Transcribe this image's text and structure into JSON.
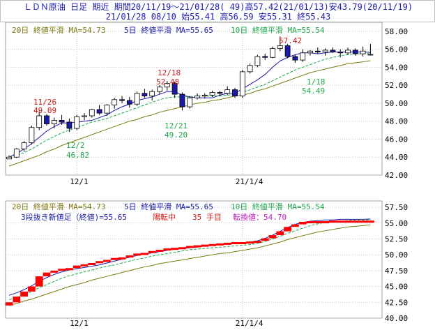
{
  "header": {
    "line1": "ＬＤＮ原油 日足 期近 期間20/11/19～21/01/28( 49)高57.42(21/01/13)安43.79(20/11/19)",
    "line2": "21/01/28 08/10 始55.41 高56.59 安55.31 終55.43"
  },
  "colors": {
    "up": "#ffffff",
    "down": "#1a1aa8",
    "ma5": "#1a1aa8",
    "ma10": "#1fa84b",
    "ma20": "#7d7a10",
    "label_red": "#d01818",
    "label_green": "#1fa84b",
    "kagi": "#ff0000",
    "grid": "#c0c0c0"
  },
  "top_chart": {
    "legend": {
      "ma20": "20日 終値平滑 MA=54.73",
      "ma5": "5日 終値平滑 MA=55.65",
      "ma10": "10日 終値平滑 MA=55.54"
    },
    "y_ticks": [
      "58.00",
      "56.00",
      "54.00",
      "52.00",
      "50.00",
      "48.00",
      "46.00",
      "44.00",
      "42.00"
    ],
    "x_ticks": [
      "12/1",
      "21/1/4"
    ],
    "annotations": [
      {
        "date": "11/26",
        "value": "49.09",
        "color": "red"
      },
      {
        "date": "12/2",
        "value": "46.82",
        "color": "green"
      },
      {
        "date": "12/18",
        "value": "52.48",
        "color": "red"
      },
      {
        "date": "12/21",
        "value": "49.20",
        "color": "green"
      },
      {
        "date": "",
        "value": "57.42",
        "color": "red"
      },
      {
        "date": "1/18",
        "value": "54.49",
        "color": "green"
      }
    ]
  },
  "bottom_chart": {
    "legend": {
      "ma20": "20日 終値平滑 MA=54.73",
      "ma5": "5日 終値平滑 MA=55.65",
      "ma10": "10日 終値平滑 MA=55.54"
    },
    "info": {
      "kagi": "3段抜き新値足（終値)=55.65",
      "trend": "陽転中",
      "count": "35 手目",
      "reversal": "転換値：54.70"
    },
    "y_ticks": [
      "57.50",
      "55.00",
      "52.50",
      "50.00",
      "47.50",
      "45.00",
      "42.50",
      "40.00"
    ],
    "x_ticks": [
      "12/1",
      "21/1/4"
    ]
  },
  "chart_data": [
    {
      "type": "candlestick",
      "title": "ＬＤＮ原油 日足 期近",
      "ylim": [
        42,
        59
      ],
      "x_labels": {
        "12/1": 9,
        "21/1/4": 31
      },
      "series": [
        {
          "name": "OHLC",
          "values": [
            [
              43.8,
              44.2,
              43.79,
              44.0
            ],
            [
              44.0,
              45.0,
              43.9,
              44.9
            ],
            [
              44.9,
              45.8,
              44.6,
              45.6
            ],
            [
              45.6,
              47.5,
              45.4,
              47.3
            ],
            [
              47.3,
              49.09,
              47.0,
              48.6
            ],
            [
              48.6,
              48.8,
              47.5,
              47.7
            ],
            [
              47.7,
              48.4,
              47.2,
              48.1
            ],
            [
              48.1,
              48.7,
              47.6,
              47.9
            ],
            [
              47.9,
              48.3,
              46.82,
              47.2
            ],
            [
              47.2,
              48.7,
              47.0,
              48.5
            ],
            [
              48.5,
              48.9,
              48.1,
              48.6
            ],
            [
              48.6,
              49.4,
              48.4,
              49.3
            ],
            [
              49.3,
              49.8,
              48.7,
              48.9
            ],
            [
              48.9,
              49.9,
              48.6,
              49.8
            ],
            [
              49.8,
              50.6,
              49.4,
              50.4
            ],
            [
              50.4,
              50.8,
              50.0,
              50.3
            ],
            [
              50.3,
              50.7,
              49.5,
              49.9
            ],
            [
              49.9,
              51.3,
              49.7,
              51.1
            ],
            [
              51.1,
              51.6,
              50.6,
              50.8
            ],
            [
              50.8,
              51.5,
              50.3,
              51.3
            ],
            [
              51.3,
              52.0,
              51.0,
              51.8
            ],
            [
              51.8,
              52.48,
              51.4,
              52.2
            ],
            [
              52.2,
              52.4,
              50.6,
              51.0
            ],
            [
              51.0,
              51.2,
              49.2,
              49.6
            ],
            [
              49.6,
              50.8,
              49.4,
              50.6
            ],
            [
              50.6,
              51.1,
              50.4,
              50.8
            ],
            [
              50.8,
              51.1,
              50.5,
              50.9
            ],
            [
              50.9,
              51.4,
              50.7,
              51.2
            ],
            [
              51.2,
              51.4,
              50.8,
              51.1
            ],
            [
              51.1,
              51.9,
              50.9,
              51.5
            ],
            [
              51.5,
              51.7,
              50.6,
              50.8
            ],
            [
              50.8,
              53.7,
              50.6,
              53.5
            ],
            [
              53.5,
              54.4,
              53.3,
              54.2
            ],
            [
              54.2,
              55.4,
              54.0,
              55.2
            ],
            [
              55.2,
              55.5,
              54.8,
              55.1
            ],
            [
              55.1,
              56.3,
              55.0,
              56.1
            ],
            [
              56.1,
              57.42,
              55.8,
              56.4
            ],
            [
              56.4,
              56.6,
              55.0,
              55.2
            ],
            [
              55.2,
              55.4,
              54.49,
              54.8
            ],
            [
              54.8,
              56.0,
              54.6,
              55.6
            ],
            [
              55.6,
              55.9,
              55.3,
              55.8
            ],
            [
              55.8,
              56.2,
              55.5,
              55.7
            ],
            [
              55.7,
              56.1,
              55.3,
              55.9
            ],
            [
              55.9,
              56.2,
              55.6,
              55.7
            ],
            [
              55.7,
              56.0,
              55.1,
              55.6
            ],
            [
              55.6,
              56.2,
              55.4,
              55.9
            ],
            [
              55.9,
              56.1,
              55.3,
              55.5
            ],
            [
              55.5,
              56.3,
              55.2,
              55.8
            ],
            [
              55.41,
              56.59,
              55.31,
              55.43
            ]
          ]
        },
        {
          "name": "MA5",
          "values": [
            44.0,
            44.4,
            44.9,
            45.5,
            46.2,
            46.9,
            47.4,
            47.8,
            47.8,
            47.9,
            48.0,
            48.1,
            48.4,
            48.7,
            49.2,
            49.6,
            49.9,
            50.3,
            50.5,
            50.7,
            51.0,
            51.3,
            51.3,
            50.9,
            50.7,
            50.6,
            50.6,
            50.6,
            50.9,
            51.1,
            51.1,
            51.6,
            52.1,
            52.6,
            53.2,
            54.0,
            54.7,
            55.1,
            55.4,
            55.6,
            55.6,
            55.5,
            55.6,
            55.7,
            55.7,
            55.7,
            55.7,
            55.7,
            55.65
          ]
        },
        {
          "name": "MA10",
          "values": [
            44.0,
            44.2,
            44.5,
            44.9,
            45.4,
            45.9,
            46.3,
            46.7,
            47.0,
            47.3,
            47.6,
            47.9,
            48.1,
            48.3,
            48.6,
            48.9,
            49.2,
            49.5,
            49.8,
            50.1,
            50.4,
            50.6,
            50.7,
            50.7,
            50.7,
            50.8,
            50.8,
            50.8,
            50.8,
            50.9,
            51.0,
            51.2,
            51.5,
            51.8,
            52.1,
            52.5,
            52.9,
            53.3,
            53.7,
            54.0,
            54.3,
            54.6,
            54.9,
            55.1,
            55.3,
            55.4,
            55.5,
            55.5,
            55.54
          ]
        },
        {
          "name": "MA20",
          "values": [
            43.0,
            43.3,
            43.6,
            43.9,
            44.2,
            44.6,
            44.9,
            45.3,
            45.6,
            45.9,
            46.2,
            46.5,
            46.8,
            47.1,
            47.4,
            47.7,
            48.0,
            48.2,
            48.5,
            48.7,
            49.0,
            49.2,
            49.4,
            49.6,
            49.8,
            50.0,
            50.1,
            50.3,
            50.4,
            50.6,
            50.8,
            50.9,
            51.1,
            51.4,
            51.6,
            51.9,
            52.2,
            52.5,
            52.8,
            53.1,
            53.4,
            53.6,
            53.8,
            54.0,
            54.2,
            54.4,
            54.5,
            54.6,
            54.73
          ]
        }
      ]
    },
    {
      "type": "bar",
      "title": "3段抜き新値足（終値)",
      "ylim": [
        40,
        58.5
      ],
      "series": [
        {
          "name": "kagi_top",
          "values": [
            42.5,
            43.4,
            44.2,
            45.0,
            46.6,
            47.2,
            47.5,
            47.8,
            47.9,
            48.3,
            48.5,
            48.7,
            49.0,
            49.2,
            49.5,
            49.6,
            49.9,
            50.2,
            50.3,
            50.6,
            50.8,
            51.0,
            51.1,
            51.2,
            51.4,
            51.5,
            51.6,
            51.7,
            51.8,
            51.9,
            52.0,
            52.0,
            52.1,
            52.2,
            52.6,
            53.1,
            53.7,
            54.4,
            54.8,
            55.2,
            55.3,
            55.3,
            55.3,
            55.4,
            55.4,
            55.4,
            55.4,
            55.4,
            55.4
          ]
        },
        {
          "name": "kagi_bottom",
          "values": [
            42.0,
            42.5,
            43.4,
            44.2,
            45.0,
            46.6,
            47.2,
            47.5,
            47.8,
            47.9,
            48.3,
            48.5,
            48.7,
            49.0,
            49.2,
            49.5,
            49.6,
            49.9,
            50.2,
            50.3,
            50.6,
            50.8,
            51.0,
            51.1,
            51.2,
            51.4,
            51.5,
            51.6,
            51.7,
            51.8,
            51.9,
            51.9,
            52.0,
            52.1,
            52.2,
            52.6,
            53.1,
            53.7,
            54.4,
            54.8,
            55.2,
            55.2,
            55.2,
            55.2,
            55.2,
            55.2,
            55.2,
            55.2,
            55.2
          ]
        },
        {
          "name": "MA5",
          "values": [
            43.6,
            44.0,
            44.5,
            45.1,
            45.8,
            46.4,
            46.9,
            47.3,
            47.6,
            47.8,
            48.0,
            48.2,
            48.4,
            48.7,
            49.0,
            49.3,
            49.6,
            49.9,
            50.1,
            50.3,
            50.5,
            50.7,
            50.9,
            51.0,
            51.1,
            51.2,
            51.4,
            51.5,
            51.6,
            51.7,
            51.8,
            51.9,
            52.0,
            52.2,
            52.6,
            53.1,
            53.7,
            54.3,
            54.8,
            55.1,
            55.3,
            55.4,
            55.5,
            55.5,
            55.6,
            55.6,
            55.6,
            55.6,
            55.65
          ]
        },
        {
          "name": "MA10",
          "values": [
            42.9,
            43.3,
            43.7,
            44.2,
            44.8,
            45.3,
            45.8,
            46.3,
            46.7,
            47.0,
            47.3,
            47.6,
            47.9,
            48.2,
            48.4,
            48.7,
            49.0,
            49.3,
            49.5,
            49.8,
            50.0,
            50.2,
            50.4,
            50.6,
            50.8,
            50.9,
            51.0,
            51.1,
            51.2,
            51.3,
            51.4,
            51.5,
            51.6,
            51.8,
            52.1,
            52.5,
            52.9,
            53.4,
            53.8,
            54.2,
            54.6,
            54.9,
            55.1,
            55.2,
            55.3,
            55.4,
            55.5,
            55.5,
            55.54
          ]
        },
        {
          "name": "MA20",
          "values": [
            42.0,
            42.3,
            42.7,
            43.0,
            43.4,
            43.8,
            44.2,
            44.6,
            45.0,
            45.3,
            45.6,
            46.0,
            46.3,
            46.6,
            46.9,
            47.2,
            47.5,
            47.8,
            48.1,
            48.3,
            48.6,
            48.8,
            49.0,
            49.2,
            49.4,
            49.6,
            49.8,
            50.0,
            50.2,
            50.3,
            50.5,
            50.7,
            50.9,
            51.1,
            51.4,
            51.7,
            52.0,
            52.4,
            52.7,
            53.0,
            53.3,
            53.6,
            53.8,
            54.0,
            54.2,
            54.4,
            54.5,
            54.6,
            54.73
          ]
        }
      ]
    }
  ]
}
